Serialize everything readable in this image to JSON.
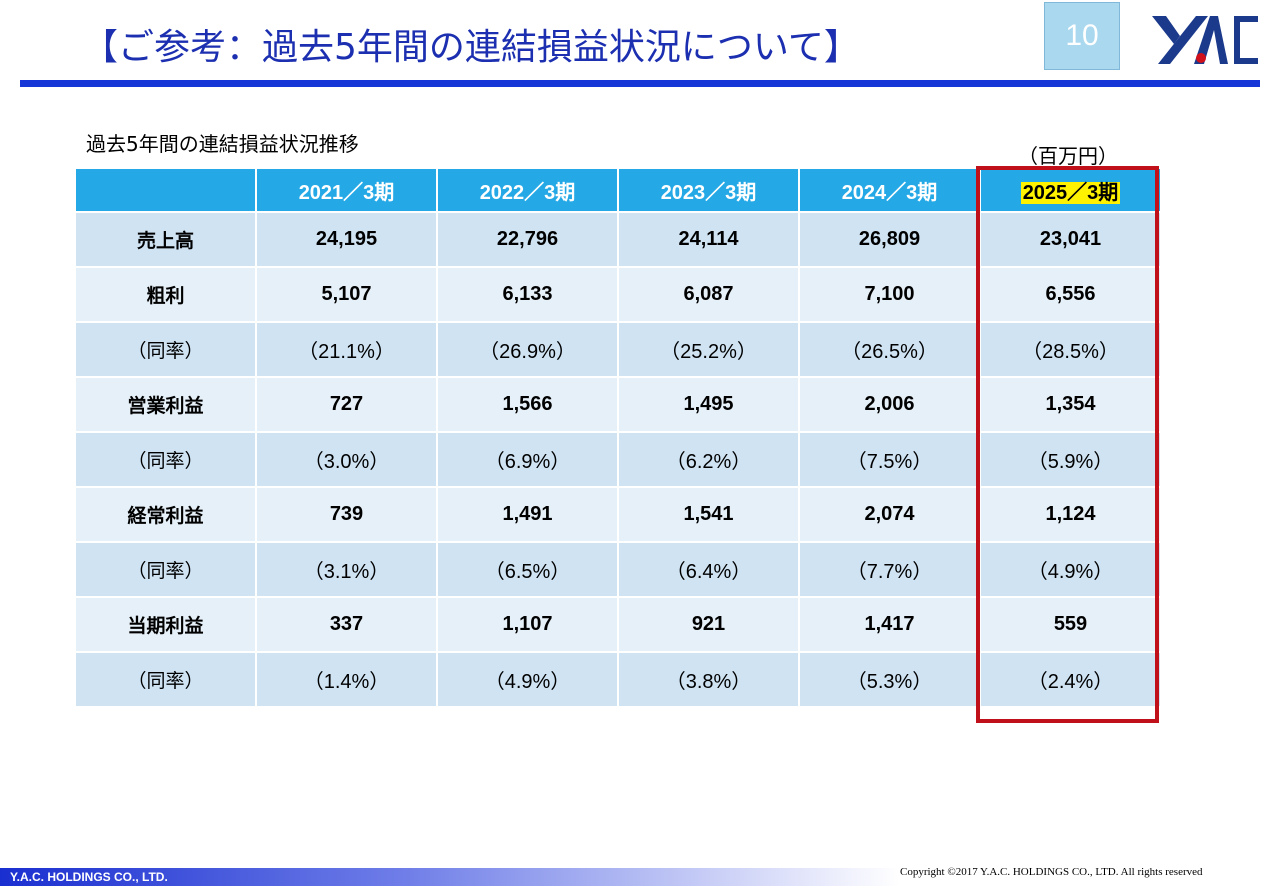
{
  "header": {
    "title": "【ご参考：過去5年間の連結損益状況について】",
    "page_number": "10",
    "logo": "YAC-logo"
  },
  "subtitle": "過去5年間の連結損益状況推移",
  "unit": "（百万円）",
  "table": {
    "columns": [
      "",
      "2021／3期",
      "2022／3期",
      "2023／3期",
      "2024／3期",
      "2025／3期"
    ],
    "rows": [
      {
        "label": "売上高",
        "values": [
          "24,195",
          "22,796",
          "24,114",
          "26,809",
          "23,041"
        ]
      },
      {
        "label": "粗利",
        "values": [
          "5,107",
          "6,133",
          "6,087",
          "7,100",
          "6,556"
        ]
      },
      {
        "label": "（同率）",
        "values": [
          "（21.1%）",
          "（26.9%）",
          "（25.2%）",
          "（26.5%）",
          "（28.5%）"
        ]
      },
      {
        "label": "営業利益",
        "values": [
          "727",
          "1,566",
          "1,495",
          "2,006",
          "1,354"
        ]
      },
      {
        "label": "（同率）",
        "values": [
          "（3.0%）",
          "（6.9%）",
          "（6.2%）",
          "（7.5%）",
          "（5.9%）"
        ]
      },
      {
        "label": "経常利益",
        "values": [
          "739",
          "1,491",
          "1,541",
          "2,074",
          "1,124"
        ]
      },
      {
        "label": "（同率）",
        "values": [
          "（3.1%）",
          "（6.5%）",
          "（6.4%）",
          "（7.7%）",
          "（4.9%）"
        ]
      },
      {
        "label": "当期利益",
        "values": [
          "337",
          "1,107",
          "921",
          "1,417",
          "559"
        ]
      },
      {
        "label": "（同率）",
        "values": [
          "（1.4%）",
          "（4.9%）",
          "（3.8%）",
          "（5.3%）",
          "（2.4%）"
        ]
      }
    ]
  },
  "footer": {
    "company": "Y.A.C. HOLDINGS CO., LTD.",
    "copyright": "Copyright ©2017 Y.A.C. HOLDINGS CO., LTD.  All rights reserved"
  },
  "colors": {
    "title": "#1b2fb0",
    "header_cell": "#24a9e6",
    "row_a": "#cfe3f3",
    "row_b": "#e6f0f8",
    "highlight": "#fff200",
    "highlight_box": "#c0101a"
  }
}
